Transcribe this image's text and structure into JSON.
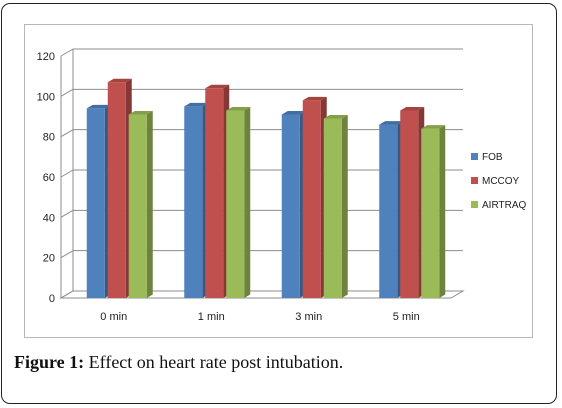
{
  "chart_data": {
    "type": "bar",
    "categories": [
      "0 min",
      "1 min",
      "3 min",
      "5 min"
    ],
    "series": [
      {
        "name": "FOB",
        "values": [
          94,
          95,
          91,
          86
        ],
        "color": "#4f81bd"
      },
      {
        "name": "MCCOY",
        "values": [
          107,
          104,
          98,
          93
        ],
        "color": "#c0504d"
      },
      {
        "name": "AIRTRAQ",
        "values": [
          91,
          93,
          89,
          84
        ],
        "color": "#9bbb59"
      }
    ],
    "ylim": [
      0,
      120
    ],
    "yticks": [
      0,
      20,
      40,
      60,
      80,
      100,
      120
    ],
    "grid": true,
    "legend_position": "right"
  },
  "caption": {
    "label": "Figure 1:",
    "text": " Effect on heart rate post intubation."
  }
}
